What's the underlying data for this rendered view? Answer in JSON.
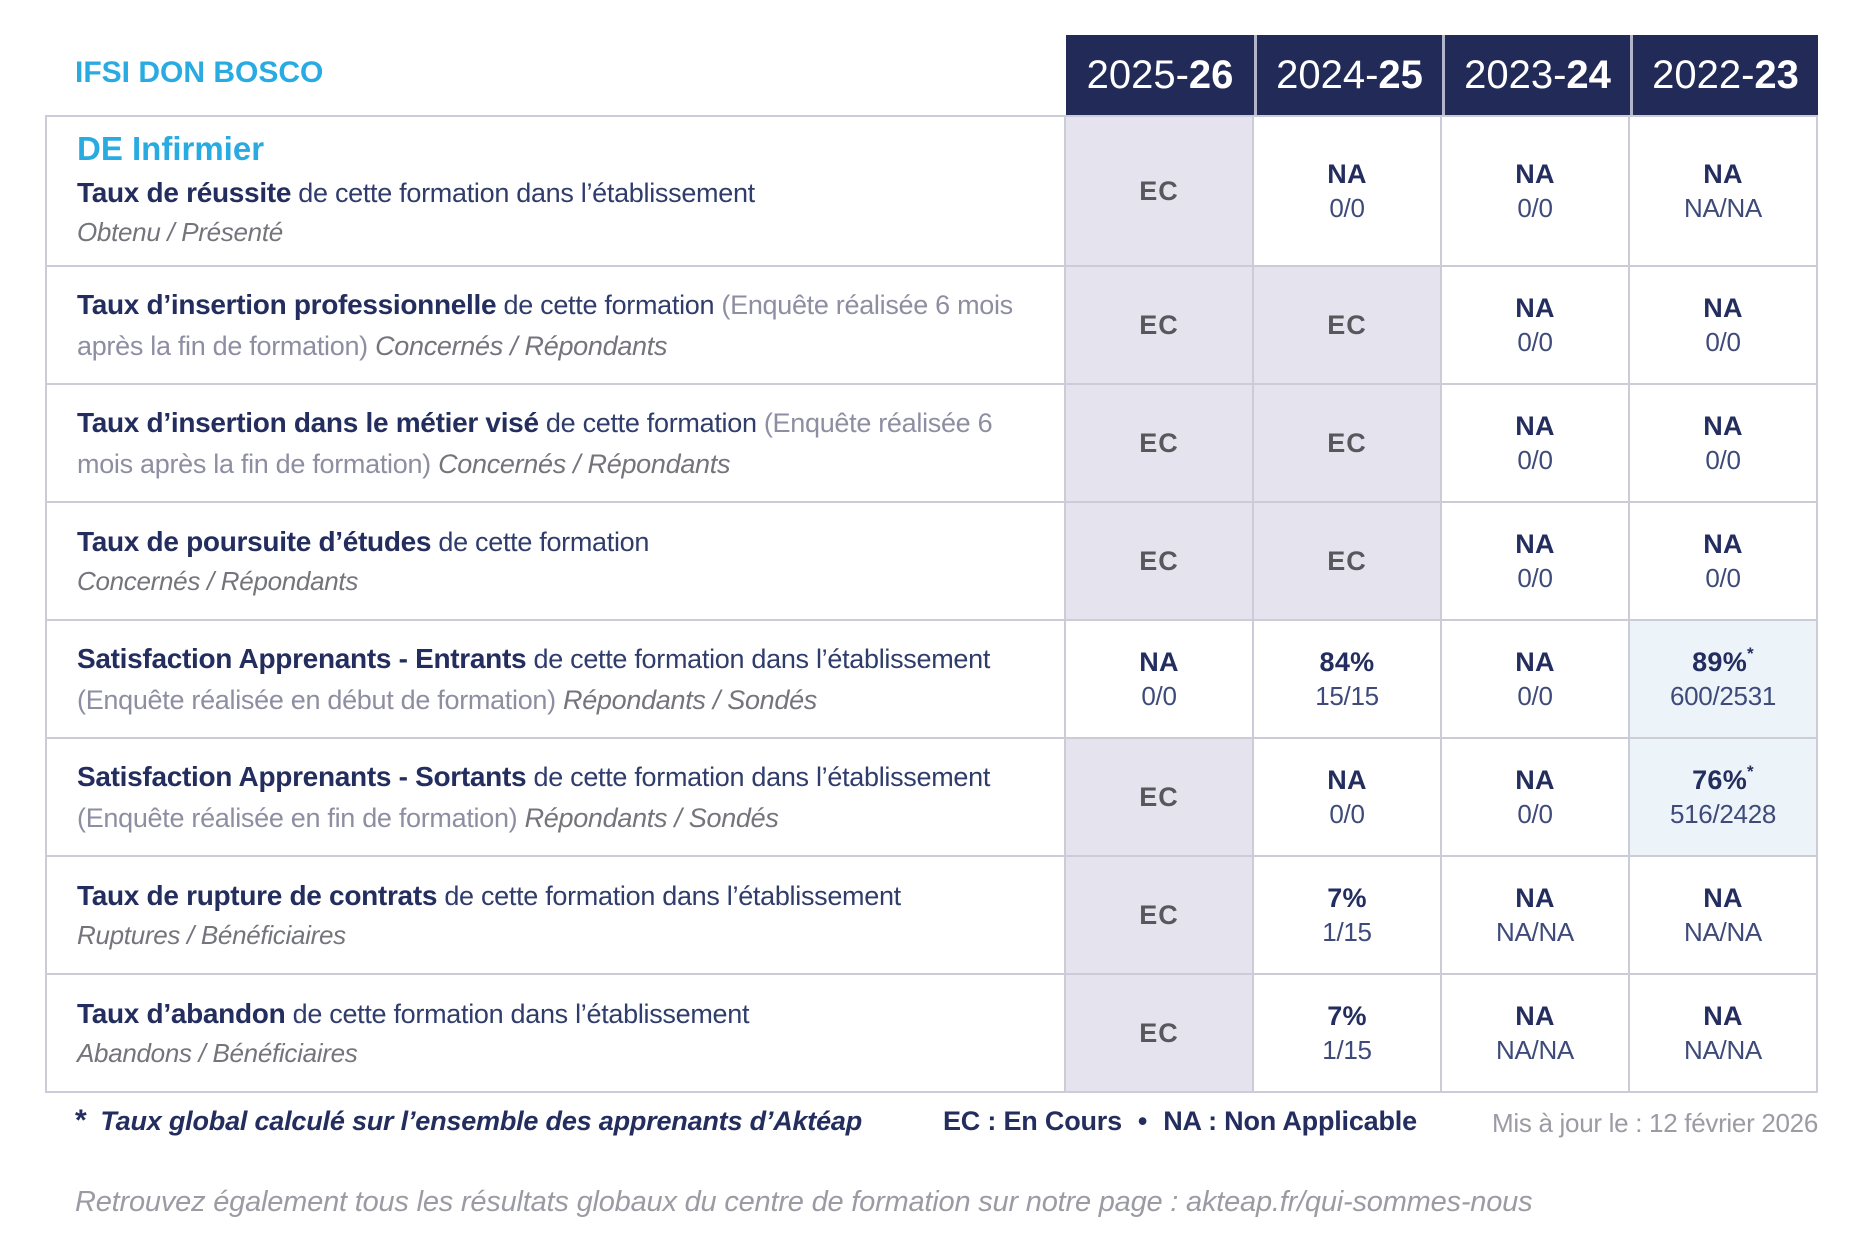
{
  "colors": {
    "accent_blue": "#29abe2",
    "header_navy": "#222b58",
    "text_navy": "#232d5e",
    "ec_cell_bg": "#e5e4ee",
    "highlight_cell_bg": "#ecf4fa"
  },
  "brand": "IFSI DON BOSCO",
  "program": "DE Infirmier",
  "header": {
    "years": [
      {
        "prefix": "2025-",
        "suffix": "26"
      },
      {
        "prefix": "2024-",
        "suffix": "25"
      },
      {
        "prefix": "2023-",
        "suffix": "24"
      },
      {
        "prefix": "2022-",
        "suffix": "23"
      }
    ]
  },
  "rows": [
    {
      "title": "Taux de réussite",
      "desc": " de cette formation dans l’établissement",
      "tail_block": "Obtenu / Présenté",
      "cells": [
        {
          "main": "EC"
        },
        {
          "main": "NA",
          "sub": "0/0"
        },
        {
          "main": "NA",
          "sub": "0/0"
        },
        {
          "main": "NA",
          "sub": "NA/NA"
        }
      ]
    },
    {
      "title": "Taux d’insertion professionnelle",
      "desc": " de cette formation ",
      "paren": "(Enquête réalisée 6 mois après la fin de formation) ",
      "tail_inline": "Concernés / Répondants",
      "cells": [
        {
          "main": "EC"
        },
        {
          "main": "EC"
        },
        {
          "main": "NA",
          "sub": "0/0"
        },
        {
          "main": "NA",
          "sub": "0/0"
        }
      ]
    },
    {
      "title": "Taux d’insertion dans le métier visé",
      "desc": " de cette formation ",
      "paren": "(Enquête réalisée 6 mois après la fin de formation) ",
      "tail_inline": "Concernés / Répondants",
      "cells": [
        {
          "main": "EC"
        },
        {
          "main": "EC"
        },
        {
          "main": "NA",
          "sub": "0/0"
        },
        {
          "main": "NA",
          "sub": "0/0"
        }
      ]
    },
    {
      "title": "Taux de poursuite d’études",
      "desc": " de cette formation",
      "tail_block": "Concernés / Répondants",
      "cells": [
        {
          "main": "EC"
        },
        {
          "main": "EC"
        },
        {
          "main": "NA",
          "sub": "0/0"
        },
        {
          "main": "NA",
          "sub": "0/0"
        }
      ]
    },
    {
      "title": "Satisfaction Apprenants - Entrants",
      "desc": " de cette formation dans l’établissement ",
      "paren": "(Enquête réalisée en début de formation) ",
      "tail_inline": "Répondants / Sondés",
      "cells": [
        {
          "main": "NA",
          "sub": "0/0"
        },
        {
          "main": "84%",
          "sub": "15/15"
        },
        {
          "main": "NA",
          "sub": "0/0"
        },
        {
          "main": "89%",
          "note": "*",
          "sub": "600/2531"
        }
      ]
    },
    {
      "title": "Satisfaction Apprenants - Sortants",
      "desc": " de cette formation dans l’établissement ",
      "paren": "(Enquête réalisée en fin de formation) ",
      "tail_inline": "Répondants / Sondés",
      "cells": [
        {
          "main": "EC"
        },
        {
          "main": "NA",
          "sub": "0/0"
        },
        {
          "main": "NA",
          "sub": "0/0"
        },
        {
          "main": "76%",
          "note": "*",
          "sub": "516/2428"
        }
      ]
    },
    {
      "title": "Taux de rupture de contrats",
      "desc": " de cette formation dans l’établissement",
      "tail_block": "Ruptures / Bénéficiaires",
      "cells": [
        {
          "main": "EC"
        },
        {
          "main": "7%",
          "sub": "1/15"
        },
        {
          "main": "NA",
          "sub": "NA/NA"
        },
        {
          "main": "NA",
          "sub": "NA/NA"
        }
      ]
    },
    {
      "title": "Taux d’abandon",
      "desc": " de cette formation dans l’établissement",
      "tail_block": "Abandons / Bénéficiaires",
      "cells": [
        {
          "main": "EC"
        },
        {
          "main": "7%",
          "sub": "1/15"
        },
        {
          "main": "NA",
          "sub": "NA/NA"
        },
        {
          "main": "NA",
          "sub": "NA/NA"
        }
      ]
    }
  ],
  "footnote": {
    "asterisk": "*",
    "text": "Taux global calculé sur l’ensemble des apprenants d’Aktéap",
    "legend_ec": "EC : En Cours",
    "bullet": "•",
    "legend_na": "NA : Non Applicable",
    "updated": "Mis à jour le : 12 février 2026"
  },
  "footer_link_line": "Retrouvez également tous les résultats globaux du centre de formation sur notre page : akteap.fr/qui-sommes-nous"
}
